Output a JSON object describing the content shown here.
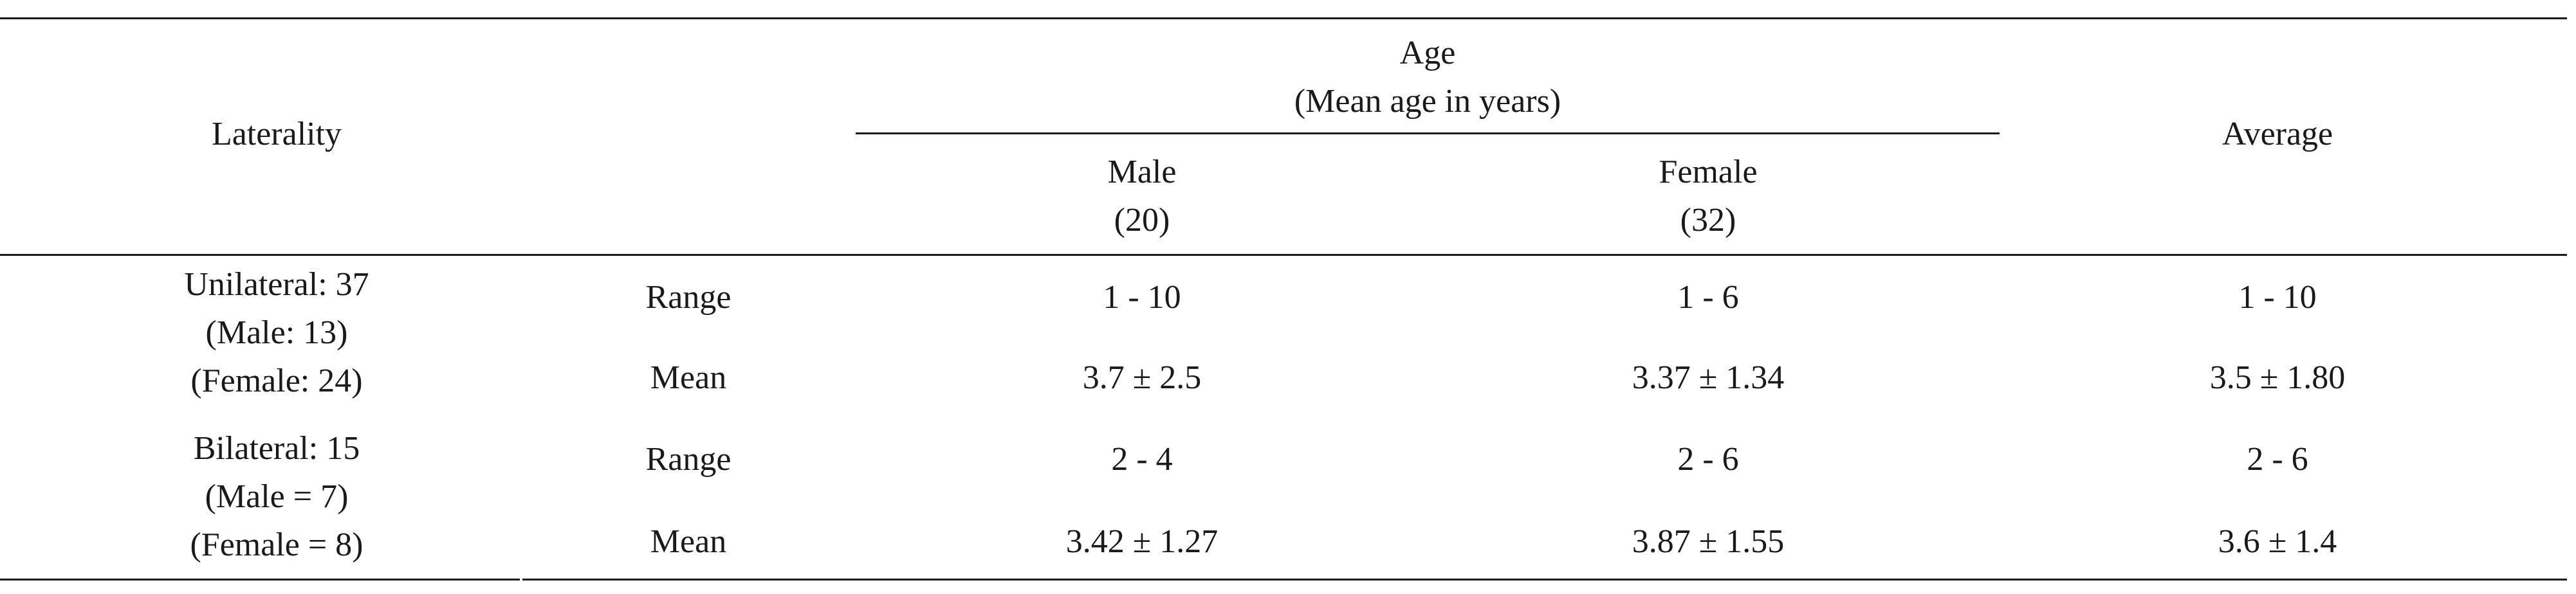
{
  "table": {
    "header": {
      "laterality": "Laterality",
      "age_title": "Age",
      "age_subtitle": "(Mean age in years)",
      "male_label": "Male",
      "male_count": "(20)",
      "female_label": "Female",
      "female_count": "(32)",
      "average": "Average"
    },
    "groups": [
      {
        "label": [
          "Unilateral: 37",
          "(Male: 13)",
          "(Female: 24)"
        ],
        "rows": [
          {
            "stat": "Range",
            "male": "1 - 10",
            "female": "1 - 6",
            "average": "1 - 10"
          },
          {
            "stat": "Mean",
            "male": "3.7 ± 2.5",
            "female": "3.37 ± 1.34",
            "average": "3.5 ± 1.80"
          }
        ]
      },
      {
        "label": [
          "Bilateral: 15",
          "(Male = 7)",
          "(Female = 8)"
        ],
        "rows": [
          {
            "stat": "Range",
            "male": "2 - 4",
            "female": "2 - 6",
            "average": "2 - 6"
          },
          {
            "stat": "Mean",
            "male": "3.42 ± 1.27",
            "female": "3.87 ± 1.55",
            "average": "3.6 ± 1.4"
          }
        ]
      }
    ]
  }
}
